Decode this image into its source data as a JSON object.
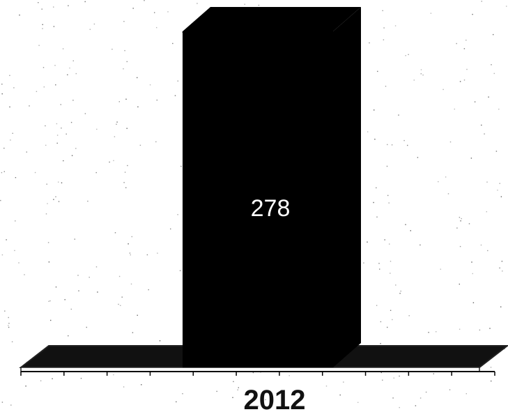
{
  "chart_data": {
    "type": "bar",
    "categories": [
      "2012"
    ],
    "values": [
      278
    ],
    "ylim": [
      0,
      278
    ],
    "title": "",
    "xlabel": "",
    "ylabel": "",
    "grid": false,
    "legend": "none",
    "three_d": true
  },
  "colors": {
    "bar": "#000000",
    "floor_fill": "#111111",
    "floor_stroke": "#222222",
    "background": "#ffffff",
    "noise": "#444444"
  }
}
